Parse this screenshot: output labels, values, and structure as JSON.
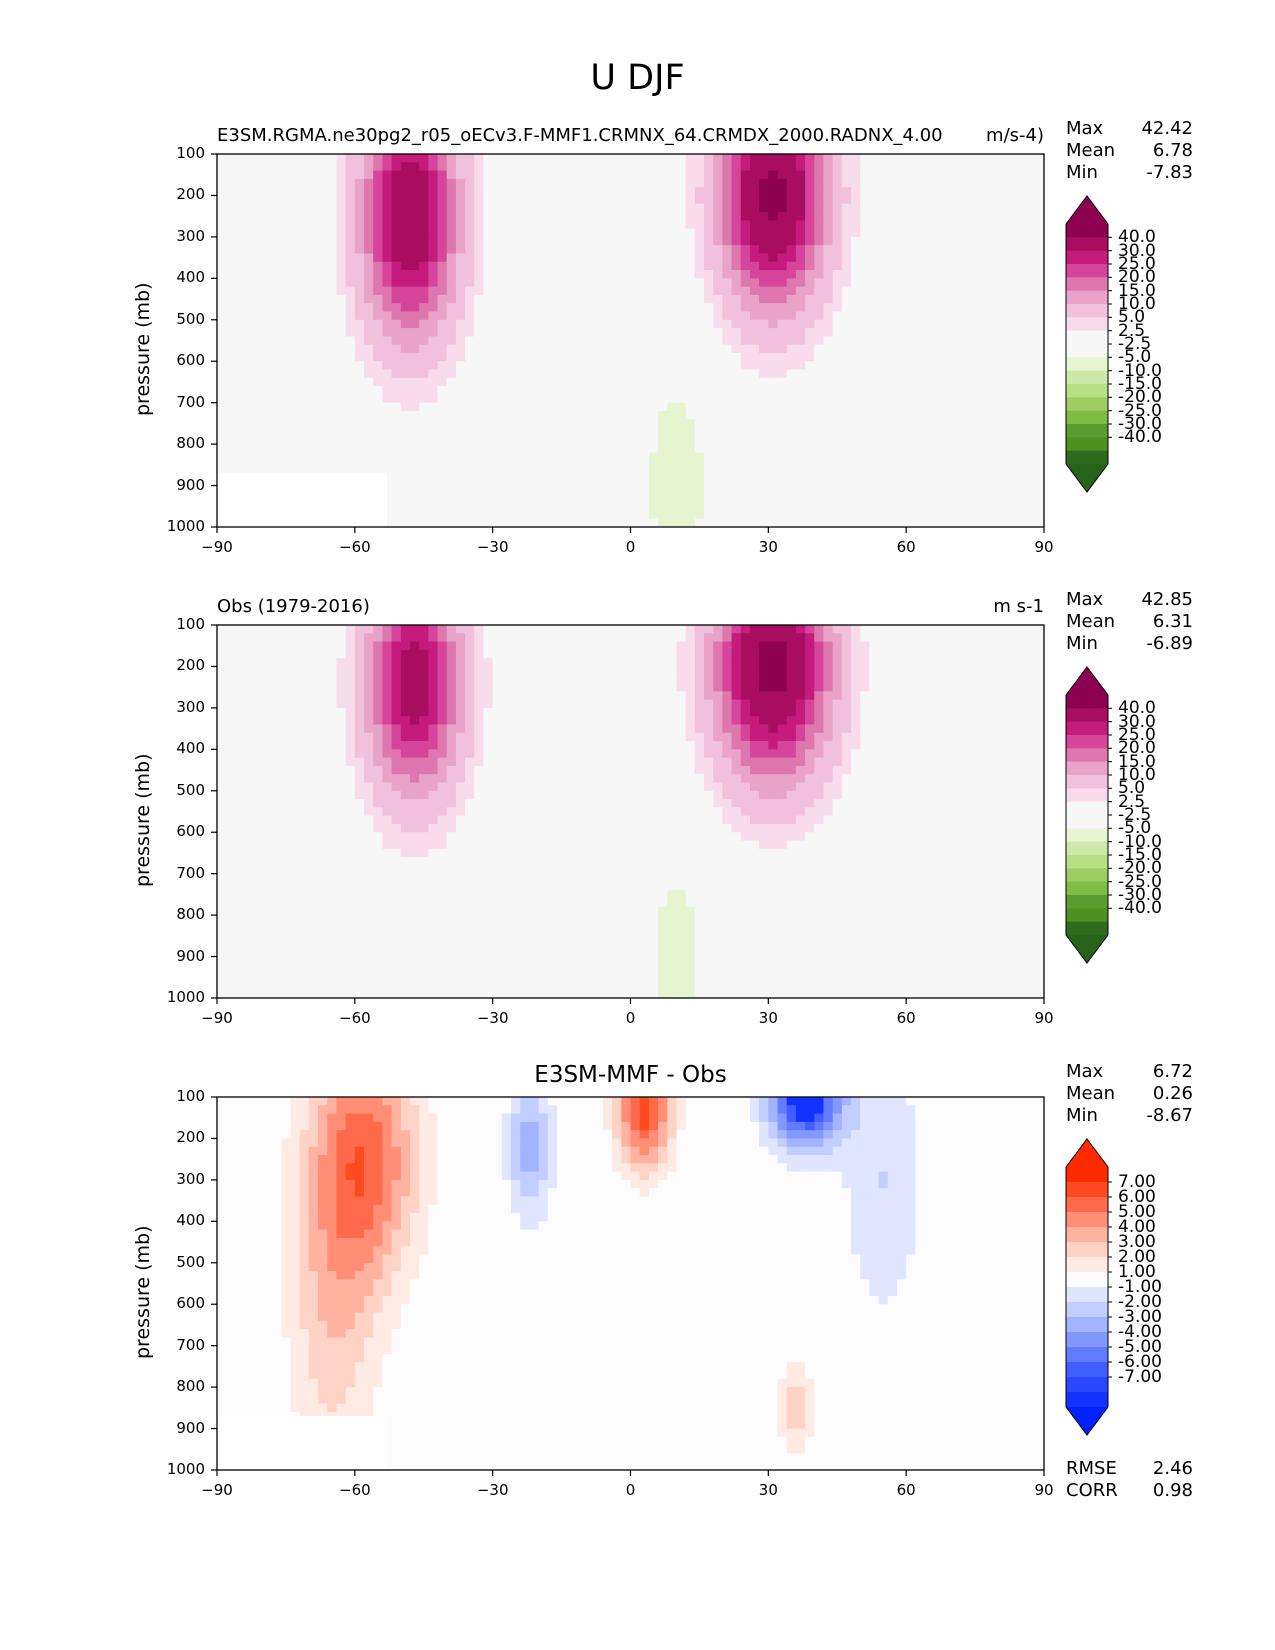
{
  "figure": {
    "title": "U DJF"
  },
  "chart_data": [
    {
      "type": "contour",
      "panel_title": "",
      "left_title": "E3SM.RGMA.ne30pg2_r05_oECv3.F-MMF1.CRMNX_64.CRMDX_2000.RADNX_4.00",
      "units": "m/s",
      "units_suffix": "-4)",
      "xlabel": "",
      "ylabel": "pressure (mb)",
      "xlim": [
        -90,
        90
      ],
      "ylim": [
        1000,
        100
      ],
      "xticks": [
        -90,
        -60,
        -30,
        0,
        30,
        60,
        90
      ],
      "xtick_labels": [
        "−90",
        "−60",
        "−30",
        "0",
        "30",
        "60",
        "90"
      ],
      "yticks": [
        100,
        200,
        300,
        400,
        500,
        600,
        700,
        800,
        900,
        1000
      ],
      "stats": [
        {
          "label": "Max",
          "value": "42.42"
        },
        {
          "label": "Mean",
          "value": "6.78"
        },
        {
          "label": "Min",
          "value": "-7.83"
        }
      ],
      "colorbar": {
        "levels": [
          "40.0",
          "30.0",
          "25.0",
          "20.0",
          "15.0",
          "10.0",
          "5.0",
          "2.5",
          "-2.5",
          "-5.0",
          "-10.0",
          "-15.0",
          "-20.0",
          "-25.0",
          "-30.0",
          "-40.0"
        ],
        "colors": [
          "#8e0152",
          "#a90d61",
          "#c51b7d",
          "#d6449b",
          "#de77ae",
          "#e9a3c9",
          "#f1c0dc",
          "#f8dceb",
          "#f7f7f7",
          "#f7f7f7",
          "#e6f5d0",
          "#cde8a8",
          "#b8e186",
          "#9dcd63",
          "#7fbc41",
          "#5a9c2f",
          "#4d9221",
          "#2f6b1c"
        ],
        "top_color": "#8e0152",
        "bottom_color": "#276419"
      },
      "features": [
        {
          "kind": "jet",
          "lat": -48,
          "p_core": 250,
          "peak": 38,
          "lat_width": 10,
          "p_width": 280
        },
        {
          "kind": "jet",
          "lat": 31,
          "p_core": 200,
          "peak": 42,
          "lat_width": 11,
          "p_width": 260
        },
        {
          "kind": "easterly",
          "lat": 10,
          "p_core": 900,
          "peak": -8,
          "lat_width": 8,
          "p_width": 300
        },
        {
          "kind": "easterly",
          "lat": -20,
          "p_core": 1000,
          "peak": -4,
          "lat_width": 7,
          "p_width": 250
        }
      ],
      "masked_region": {
        "lat_min": -90,
        "lat_max": -53,
        "p_min": 870,
        "p_max": 1000
      }
    },
    {
      "type": "contour",
      "panel_title": "",
      "left_title": "Obs (1979-2016)",
      "units": "m s-1",
      "units_suffix": "",
      "xlabel": "",
      "ylabel": "pressure (mb)",
      "xlim": [
        -90,
        90
      ],
      "ylim": [
        1000,
        100
      ],
      "xticks": [
        -90,
        -60,
        -30,
        0,
        30,
        60,
        90
      ],
      "xtick_labels": [
        "−90",
        "−60",
        "−30",
        "0",
        "30",
        "60",
        "90"
      ],
      "yticks": [
        100,
        200,
        300,
        400,
        500,
        600,
        700,
        800,
        900,
        1000
      ],
      "stats": [
        {
          "label": "Max",
          "value": "42.85"
        },
        {
          "label": "Mean",
          "value": "6.31"
        },
        {
          "label": "Min",
          "value": "-6.89"
        }
      ],
      "colorbar": {
        "levels": [
          "40.0",
          "30.0",
          "25.0",
          "20.0",
          "15.0",
          "10.0",
          "5.0",
          "2.5",
          "-2.5",
          "-5.0",
          "-10.0",
          "-15.0",
          "-20.0",
          "-25.0",
          "-30.0",
          "-40.0"
        ],
        "colors": [
          "#8e0152",
          "#a90d61",
          "#c51b7d",
          "#d6449b",
          "#de77ae",
          "#e9a3c9",
          "#f1c0dc",
          "#f8dceb",
          "#f7f7f7",
          "#f7f7f7",
          "#e6f5d0",
          "#cde8a8",
          "#b8e186",
          "#9dcd63",
          "#7fbc41",
          "#5a9c2f",
          "#4d9221",
          "#2f6b1c"
        ],
        "top_color": "#8e0152",
        "bottom_color": "#276419"
      },
      "features": [
        {
          "kind": "jet",
          "lat": -47,
          "p_core": 240,
          "peak": 34,
          "lat_width": 10,
          "p_width": 260
        },
        {
          "kind": "jet",
          "lat": 31,
          "p_core": 200,
          "peak": 43,
          "lat_width": 12,
          "p_width": 260
        },
        {
          "kind": "easterly",
          "lat": 10,
          "p_core": 900,
          "peak": -7,
          "lat_width": 8,
          "p_width": 280
        },
        {
          "kind": "easterly",
          "lat": -20,
          "p_core": 950,
          "peak": -4,
          "lat_width": 7,
          "p_width": 240
        }
      ],
      "masked_region": null
    },
    {
      "type": "contour",
      "panel_title": "E3SM-MMF - Obs",
      "left_title": "",
      "units": "",
      "units_suffix": "",
      "xlabel": "",
      "ylabel": "pressure (mb)",
      "xlim": [
        -90,
        90
      ],
      "ylim": [
        1000,
        100
      ],
      "xticks": [
        -90,
        -60,
        -30,
        0,
        30,
        60,
        90
      ],
      "xtick_labels": [
        "−90",
        "−60",
        "−30",
        "0",
        "30",
        "60",
        "90"
      ],
      "yticks": [
        100,
        200,
        300,
        400,
        500,
        600,
        700,
        800,
        900,
        1000
      ],
      "stats": [
        {
          "label": "Max",
          "value": "6.72"
        },
        {
          "label": "Mean",
          "value": "0.26"
        },
        {
          "label": "Min",
          "value": "-8.67"
        }
      ],
      "bottom_stats": [
        {
          "label": "RMSE",
          "value": "2.46"
        },
        {
          "label": "CORR",
          "value": "0.98"
        }
      ],
      "colorbar": {
        "levels": [
          "7.00",
          "6.00",
          "5.00",
          "4.00",
          "3.00",
          "2.00",
          "1.00",
          "-1.00",
          "-2.00",
          "-3.00",
          "-4.00",
          "-5.00",
          "-6.00",
          "-7.00"
        ],
        "colors": [
          "#ff2a00",
          "#ff4a1f",
          "#ff6a4a",
          "#ff8e75",
          "#ffb2a0",
          "#ffd2c6",
          "#ffeae4",
          "#fcfcfc",
          "#e0e6ff",
          "#c2ceff",
          "#a2b4ff",
          "#8398ff",
          "#637bff",
          "#435eff",
          "#2a46ff",
          "#1232ff"
        ],
        "top_color": "#ff2a00",
        "bottom_color": "#0022ff"
      },
      "features": [
        {
          "kind": "anomaly",
          "lat": -58,
          "p_core": 250,
          "peak": 5.5,
          "lat_width": 12,
          "p_width": 300
        },
        {
          "kind": "anomaly",
          "lat": -65,
          "p_core": 650,
          "peak": 2.5,
          "lat_width": 10,
          "p_width": 400
        },
        {
          "kind": "anomaly",
          "lat": -22,
          "p_core": 220,
          "peak": -3.5,
          "lat_width": 5,
          "p_width": 180
        },
        {
          "kind": "anomaly",
          "lat": 3,
          "p_core": 130,
          "peak": 6.5,
          "lat_width": 6,
          "p_width": 150
        },
        {
          "kind": "anomaly",
          "lat": 38,
          "p_core": 100,
          "peak": -8.5,
          "lat_width": 8,
          "p_width": 120
        },
        {
          "kind": "anomaly",
          "lat": 55,
          "p_core": 300,
          "peak": -2.0,
          "lat_width": 9,
          "p_width": 350
        },
        {
          "kind": "anomaly",
          "lat": 36,
          "p_core": 850,
          "peak": 2.5,
          "lat_width": 4,
          "p_width": 120
        }
      ],
      "masked_region": {
        "lat_min": -90,
        "lat_max": -53,
        "p_min": 870,
        "p_max": 1000
      }
    }
  ]
}
